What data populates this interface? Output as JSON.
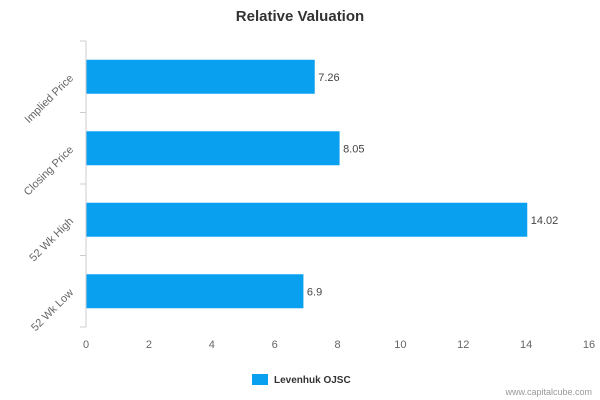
{
  "chart_data": {
    "type": "bar",
    "orientation": "horizontal",
    "title": "Relative Valuation",
    "categories": [
      "Implied Price",
      "Closing Price",
      "52 Wk High",
      "52 Wk Low"
    ],
    "series": [
      {
        "name": "Levenhuk OJSC",
        "values": [
          7.26,
          8.05,
          14.02,
          6.9
        ],
        "labels": [
          "7.26",
          "8.05",
          "14.02",
          "6.9"
        ],
        "color": "#0aa0f0"
      }
    ],
    "xlim": [
      0,
      16
    ],
    "xticks": [
      0,
      2,
      4,
      6,
      8,
      10,
      12,
      14,
      16
    ],
    "grid": false,
    "legend_position": "bottom-center"
  },
  "credit": "www.capitalcube.com"
}
